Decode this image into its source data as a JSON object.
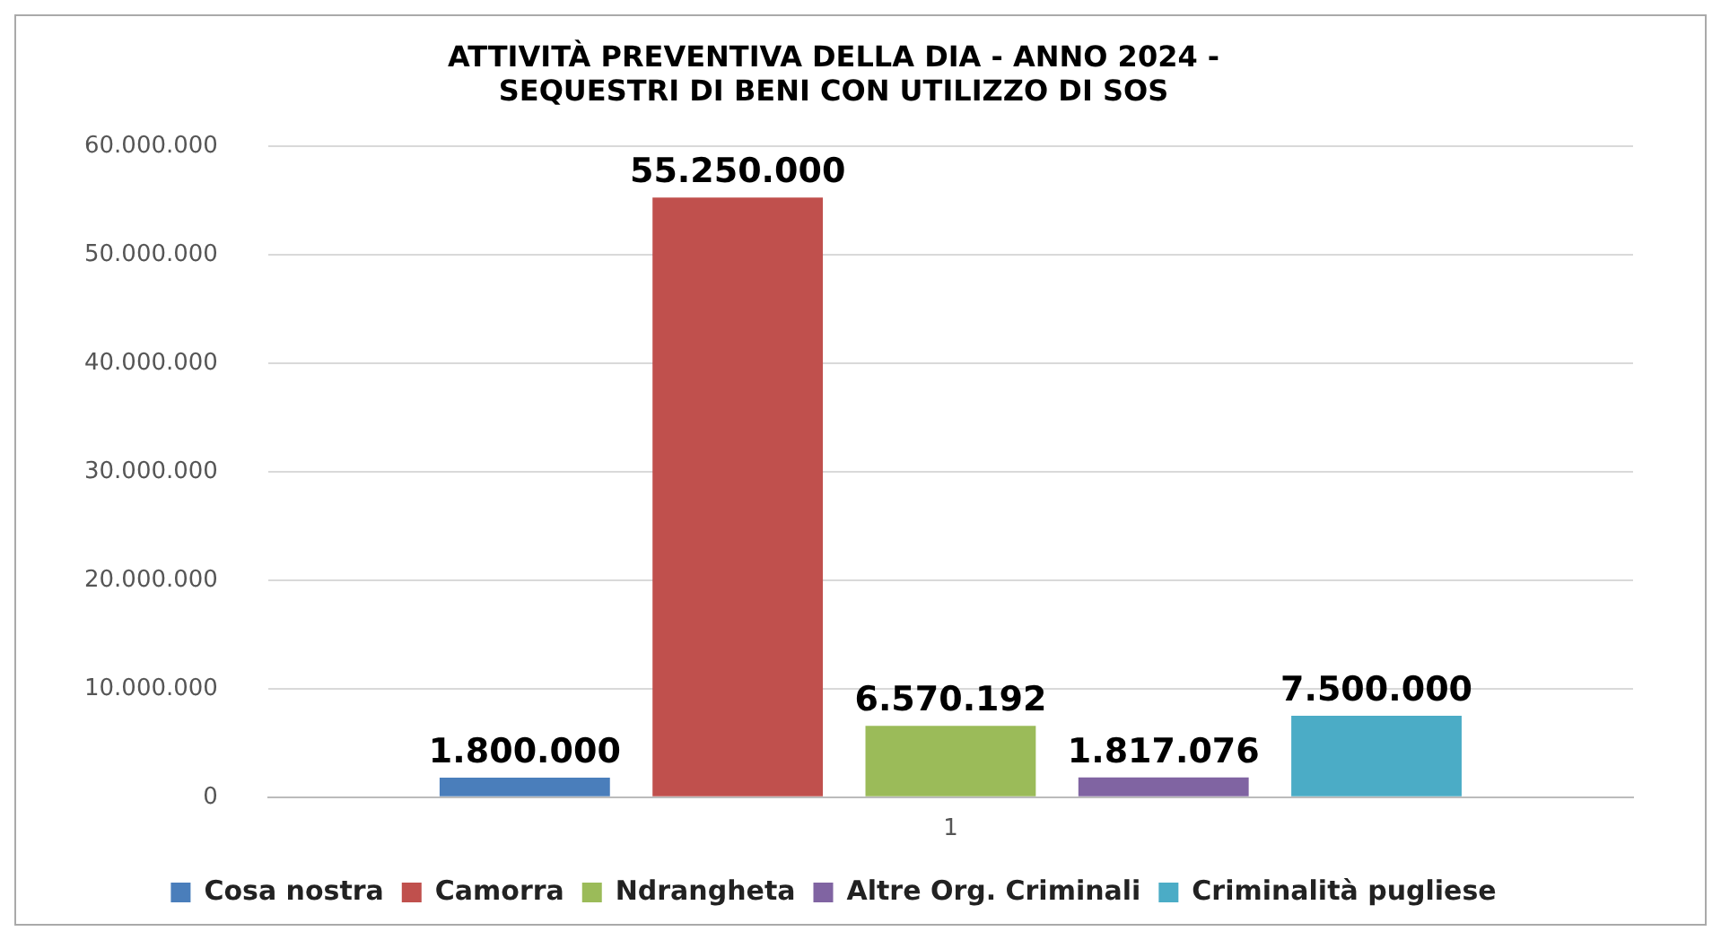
{
  "chart_data": {
    "type": "bar",
    "title": "ATTIVITÀ PREVENTIVA DELLA DIA - ANNO 2024 -\nSEQUESTRI DI BENI CON UTILIZZO DI SOS",
    "categories": [
      "1"
    ],
    "series": [
      {
        "name": "Cosa nostra",
        "color": "#4a7ebb",
        "values": [
          1800000
        ],
        "value_labels": [
          "1.800.000"
        ]
      },
      {
        "name": "Camorra",
        "color": "#c0504d",
        "values": [
          55250000
        ],
        "value_labels": [
          "55.250.000"
        ]
      },
      {
        "name": "Ndrangheta",
        "color": "#9bbb59",
        "values": [
          6570192
        ],
        "value_labels": [
          "6.570.192"
        ]
      },
      {
        "name": "Altre Org. Criminali",
        "color": "#8064a2",
        "values": [
          1817076
        ],
        "value_labels": [
          "1.817.076"
        ]
      },
      {
        "name": "Criminalità pugliese",
        "color": "#4bacc6",
        "values": [
          7500000
        ],
        "value_labels": [
          "7.500.000"
        ]
      }
    ],
    "ylim": [
      0,
      60000000
    ],
    "yticks": [
      0,
      {
        "value": 10000000,
        "label": "10.000.000"
      },
      {
        "value": 20000000,
        "label": "20.000.000"
      },
      {
        "value": 30000000,
        "label": "30.000.000"
      },
      {
        "value": 40000000,
        "label": "40.000.000"
      },
      {
        "value": 50000000,
        "label": "50.000.000"
      },
      {
        "value": 60000000,
        "label": "60.000.000"
      }
    ],
    "grid": "y",
    "legend": "bottom"
  }
}
